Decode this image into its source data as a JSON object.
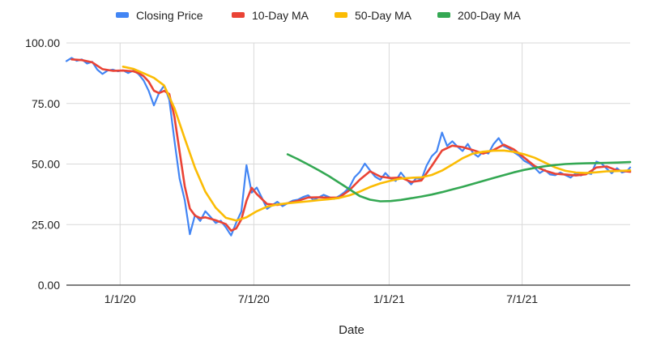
{
  "chart_data": {
    "type": "line",
    "title": "",
    "xlabel": "Date",
    "ylabel": "",
    "x_axis": {
      "type": "date",
      "range": [
        "2019-10-20",
        "2021-11-25"
      ],
      "ticks": [
        {
          "date": "2020-01-01",
          "label": "1/1/20"
        },
        {
          "date": "2020-07-01",
          "label": "7/1/20"
        },
        {
          "date": "2021-01-01",
          "label": "1/1/21"
        },
        {
          "date": "2021-07-01",
          "label": "7/1/21"
        }
      ]
    },
    "y_axis": {
      "range": [
        0,
        100
      ],
      "ticks": [
        {
          "value": 0,
          "label": "0.00"
        },
        {
          "value": 25,
          "label": "25.00"
        },
        {
          "value": 50,
          "label": "50.00"
        },
        {
          "value": 75,
          "label": "75.00"
        },
        {
          "value": 100,
          "label": "100.00"
        }
      ]
    },
    "grid": true,
    "legend_position": "top",
    "series": [
      {
        "name": "Closing Price",
        "color": "#4285f4",
        "points": [
          [
            "2019-10-20",
            92.5
          ],
          [
            "2019-10-27",
            93.8
          ],
          [
            "2019-11-03",
            92.6
          ],
          [
            "2019-11-10",
            93.2
          ],
          [
            "2019-11-17",
            91.5
          ],
          [
            "2019-11-24",
            92.2
          ],
          [
            "2019-12-01",
            89.0
          ],
          [
            "2019-12-08",
            87.2
          ],
          [
            "2019-12-15",
            88.6
          ],
          [
            "2019-12-22",
            89.0
          ],
          [
            "2019-12-29",
            88.3
          ],
          [
            "2020-01-05",
            88.7
          ],
          [
            "2020-01-12",
            87.6
          ],
          [
            "2020-01-19",
            88.6
          ],
          [
            "2020-01-26",
            87.2
          ],
          [
            "2020-02-02",
            84.5
          ],
          [
            "2020-02-09",
            80.2
          ],
          [
            "2020-02-16",
            74.2
          ],
          [
            "2020-02-23",
            79.3
          ],
          [
            "2020-03-01",
            82.4
          ],
          [
            "2020-03-08",
            76.5
          ],
          [
            "2020-03-15",
            59.6
          ],
          [
            "2020-03-22",
            44.0
          ],
          [
            "2020-03-29",
            35.1
          ],
          [
            "2020-04-05",
            21.0
          ],
          [
            "2020-04-12",
            29.0
          ],
          [
            "2020-04-19",
            26.5
          ],
          [
            "2020-04-26",
            30.5
          ],
          [
            "2020-05-03",
            28.2
          ],
          [
            "2020-05-10",
            25.7
          ],
          [
            "2020-05-17",
            26.6
          ],
          [
            "2020-05-24",
            23.8
          ],
          [
            "2020-05-31",
            20.5
          ],
          [
            "2020-06-07",
            25.8
          ],
          [
            "2020-06-14",
            30.4
          ],
          [
            "2020-06-21",
            49.5
          ],
          [
            "2020-06-28",
            38.2
          ],
          [
            "2020-07-05",
            40.3
          ],
          [
            "2020-07-12",
            36.0
          ],
          [
            "2020-07-19",
            31.5
          ],
          [
            "2020-07-26",
            33.0
          ],
          [
            "2020-08-02",
            34.4
          ],
          [
            "2020-08-09",
            32.6
          ],
          [
            "2020-08-16",
            33.8
          ],
          [
            "2020-08-23",
            34.9
          ],
          [
            "2020-08-30",
            35.3
          ],
          [
            "2020-09-06",
            36.4
          ],
          [
            "2020-09-13",
            37.1
          ],
          [
            "2020-09-20",
            35.2
          ],
          [
            "2020-09-27",
            36.2
          ],
          [
            "2020-10-04",
            37.3
          ],
          [
            "2020-10-11",
            36.4
          ],
          [
            "2020-10-18",
            35.6
          ],
          [
            "2020-10-25",
            36.8
          ],
          [
            "2020-11-01",
            38.3
          ],
          [
            "2020-11-08",
            40.4
          ],
          [
            "2020-11-15",
            44.5
          ],
          [
            "2020-11-22",
            46.7
          ],
          [
            "2020-11-29",
            50.2
          ],
          [
            "2020-12-06",
            47.4
          ],
          [
            "2020-12-13",
            44.8
          ],
          [
            "2020-12-20",
            43.5
          ],
          [
            "2020-12-27",
            46.3
          ],
          [
            "2021-01-03",
            44.0
          ],
          [
            "2021-01-10",
            43.0
          ],
          [
            "2021-01-17",
            46.5
          ],
          [
            "2021-01-24",
            43.8
          ],
          [
            "2021-01-31",
            41.6
          ],
          [
            "2021-02-07",
            44.2
          ],
          [
            "2021-02-14",
            43.6
          ],
          [
            "2021-02-21",
            49.3
          ],
          [
            "2021-02-28",
            53.2
          ],
          [
            "2021-03-07",
            55.3
          ],
          [
            "2021-03-14",
            63.0
          ],
          [
            "2021-03-21",
            57.5
          ],
          [
            "2021-03-28",
            59.4
          ],
          [
            "2021-04-04",
            57.2
          ],
          [
            "2021-04-11",
            55.4
          ],
          [
            "2021-04-18",
            58.3
          ],
          [
            "2021-04-25",
            54.6
          ],
          [
            "2021-05-02",
            53.0
          ],
          [
            "2021-05-09",
            55.2
          ],
          [
            "2021-05-16",
            54.3
          ],
          [
            "2021-05-23",
            58.2
          ],
          [
            "2021-05-30",
            60.7
          ],
          [
            "2021-06-06",
            57.4
          ],
          [
            "2021-06-13",
            56.4
          ],
          [
            "2021-06-20",
            54.8
          ],
          [
            "2021-06-27",
            53.4
          ],
          [
            "2021-07-04",
            51.3
          ],
          [
            "2021-07-11",
            50.2
          ],
          [
            "2021-07-18",
            48.5
          ],
          [
            "2021-07-25",
            46.3
          ],
          [
            "2021-08-01",
            47.6
          ],
          [
            "2021-08-08",
            45.7
          ],
          [
            "2021-08-15",
            45.4
          ],
          [
            "2021-08-22",
            46.5
          ],
          [
            "2021-08-29",
            45.4
          ],
          [
            "2021-09-05",
            44.4
          ],
          [
            "2021-09-12",
            46.2
          ],
          [
            "2021-09-19",
            45.3
          ],
          [
            "2021-09-26",
            46.4
          ],
          [
            "2021-10-03",
            45.9
          ],
          [
            "2021-10-10",
            51.0
          ],
          [
            "2021-10-17",
            50.2
          ],
          [
            "2021-10-24",
            48.1
          ],
          [
            "2021-10-31",
            46.2
          ],
          [
            "2021-11-07",
            48.3
          ],
          [
            "2021-11-14",
            46.5
          ],
          [
            "2021-11-21",
            47.2
          ],
          [
            "2021-11-25",
            48.6
          ]
        ]
      },
      {
        "name": "10-Day MA",
        "color": "#ea4335",
        "points": [
          [
            "2019-10-27",
            93.2
          ],
          [
            "2019-11-10",
            92.9
          ],
          [
            "2019-11-24",
            92.0
          ],
          [
            "2019-12-08",
            89.2
          ],
          [
            "2019-12-22",
            88.5
          ],
          [
            "2020-01-05",
            88.6
          ],
          [
            "2020-01-19",
            88.3
          ],
          [
            "2020-01-26",
            87.6
          ],
          [
            "2020-02-02",
            86.3
          ],
          [
            "2020-02-09",
            84.0
          ],
          [
            "2020-02-16",
            80.3
          ],
          [
            "2020-02-23",
            79.3
          ],
          [
            "2020-03-01",
            80.2
          ],
          [
            "2020-03-08",
            78.9
          ],
          [
            "2020-03-15",
            69.4
          ],
          [
            "2020-03-22",
            55.2
          ],
          [
            "2020-03-29",
            40.8
          ],
          [
            "2020-04-05",
            31.6
          ],
          [
            "2020-04-12",
            28.7
          ],
          [
            "2020-04-19",
            27.7
          ],
          [
            "2020-04-26",
            28.0
          ],
          [
            "2020-05-10",
            26.8
          ],
          [
            "2020-05-24",
            25.2
          ],
          [
            "2020-05-31",
            22.5
          ],
          [
            "2020-06-07",
            23.4
          ],
          [
            "2020-06-14",
            27.2
          ],
          [
            "2020-06-21",
            34.8
          ],
          [
            "2020-06-28",
            40.2
          ],
          [
            "2020-07-05",
            37.6
          ],
          [
            "2020-07-19",
            33.5
          ],
          [
            "2020-08-02",
            33.1
          ],
          [
            "2020-08-16",
            33.8
          ],
          [
            "2020-08-30",
            34.8
          ],
          [
            "2020-09-13",
            36.2
          ],
          [
            "2020-09-27",
            36.3
          ],
          [
            "2020-10-11",
            36.1
          ],
          [
            "2020-10-25",
            36.2
          ],
          [
            "2020-11-08",
            39.2
          ],
          [
            "2020-11-22",
            43.5
          ],
          [
            "2020-12-06",
            47.0
          ],
          [
            "2020-12-20",
            44.8
          ],
          [
            "2021-01-03",
            44.2
          ],
          [
            "2021-01-17",
            44.4
          ],
          [
            "2021-01-31",
            42.6
          ],
          [
            "2021-02-14",
            43.2
          ],
          [
            "2021-02-28",
            49.2
          ],
          [
            "2021-03-14",
            55.6
          ],
          [
            "2021-03-28",
            57.6
          ],
          [
            "2021-04-11",
            57.0
          ],
          [
            "2021-04-25",
            55.8
          ],
          [
            "2021-05-09",
            54.3
          ],
          [
            "2021-05-23",
            55.8
          ],
          [
            "2021-06-06",
            58.0
          ],
          [
            "2021-06-20",
            56.0
          ],
          [
            "2021-07-04",
            52.6
          ],
          [
            "2021-07-18",
            49.2
          ],
          [
            "2021-08-01",
            47.3
          ],
          [
            "2021-08-15",
            46.0
          ],
          [
            "2021-08-29",
            45.7
          ],
          [
            "2021-09-12",
            45.3
          ],
          [
            "2021-09-26",
            45.8
          ],
          [
            "2021-10-10",
            48.6
          ],
          [
            "2021-10-24",
            49.0
          ],
          [
            "2021-11-07",
            47.4
          ],
          [
            "2021-11-25",
            46.8
          ]
        ]
      },
      {
        "name": "50-Day MA",
        "color": "#fbbc04",
        "points": [
          [
            "2020-01-05",
            90.2
          ],
          [
            "2020-01-19",
            89.3
          ],
          [
            "2020-02-02",
            87.5
          ],
          [
            "2020-02-16",
            85.6
          ],
          [
            "2020-03-01",
            82.4
          ],
          [
            "2020-03-15",
            73.0
          ],
          [
            "2020-03-29",
            60.5
          ],
          [
            "2020-04-12",
            48.4
          ],
          [
            "2020-04-26",
            38.6
          ],
          [
            "2020-05-10",
            32.0
          ],
          [
            "2020-05-24",
            27.8
          ],
          [
            "2020-06-07",
            26.7
          ],
          [
            "2020-06-21",
            28.0
          ],
          [
            "2020-07-05",
            30.5
          ],
          [
            "2020-07-19",
            32.4
          ],
          [
            "2020-08-02",
            33.3
          ],
          [
            "2020-08-16",
            33.8
          ],
          [
            "2020-08-30",
            34.2
          ],
          [
            "2020-09-13",
            34.6
          ],
          [
            "2020-09-27",
            35.1
          ],
          [
            "2020-10-11",
            35.5
          ],
          [
            "2020-10-25",
            36.0
          ],
          [
            "2020-11-08",
            37.1
          ],
          [
            "2020-11-22",
            38.6
          ],
          [
            "2020-12-06",
            40.5
          ],
          [
            "2020-12-20",
            42.0
          ],
          [
            "2021-01-03",
            43.1
          ],
          [
            "2021-01-17",
            44.0
          ],
          [
            "2021-01-31",
            44.3
          ],
          [
            "2021-02-14",
            44.5
          ],
          [
            "2021-02-28",
            45.5
          ],
          [
            "2021-03-14",
            47.3
          ],
          [
            "2021-03-28",
            49.8
          ],
          [
            "2021-04-11",
            52.4
          ],
          [
            "2021-04-25",
            54.3
          ],
          [
            "2021-05-09",
            55.1
          ],
          [
            "2021-05-23",
            55.5
          ],
          [
            "2021-06-06",
            55.6
          ],
          [
            "2021-06-20",
            55.0
          ],
          [
            "2021-07-04",
            54.0
          ],
          [
            "2021-07-18",
            52.6
          ],
          [
            "2021-08-01",
            50.6
          ],
          [
            "2021-08-15",
            48.6
          ],
          [
            "2021-08-29",
            47.2
          ],
          [
            "2021-09-12",
            46.5
          ],
          [
            "2021-09-26",
            46.3
          ],
          [
            "2021-10-10",
            46.6
          ],
          [
            "2021-10-24",
            47.0
          ],
          [
            "2021-11-07",
            47.1
          ],
          [
            "2021-11-25",
            47.4
          ]
        ]
      },
      {
        "name": "200-Day MA",
        "color": "#34a853",
        "points": [
          [
            "2020-08-16",
            54.0
          ],
          [
            "2020-08-30",
            52.0
          ],
          [
            "2020-09-13",
            49.8
          ],
          [
            "2020-09-27",
            47.5
          ],
          [
            "2020-10-11",
            45.0
          ],
          [
            "2020-10-25",
            42.3
          ],
          [
            "2020-11-08",
            39.6
          ],
          [
            "2020-11-22",
            36.8
          ],
          [
            "2020-12-06",
            35.3
          ],
          [
            "2020-12-20",
            34.6
          ],
          [
            "2021-01-03",
            34.7
          ],
          [
            "2021-01-17",
            35.2
          ],
          [
            "2021-01-31",
            35.9
          ],
          [
            "2021-02-14",
            36.6
          ],
          [
            "2021-02-28",
            37.4
          ],
          [
            "2021-03-14",
            38.4
          ],
          [
            "2021-03-28",
            39.5
          ],
          [
            "2021-04-11",
            40.6
          ],
          [
            "2021-04-25",
            41.8
          ],
          [
            "2021-05-09",
            43.0
          ],
          [
            "2021-05-23",
            44.2
          ],
          [
            "2021-06-06",
            45.4
          ],
          [
            "2021-06-20",
            46.6
          ],
          [
            "2021-07-04",
            47.6
          ],
          [
            "2021-07-18",
            48.4
          ],
          [
            "2021-08-01",
            49.1
          ],
          [
            "2021-08-15",
            49.6
          ],
          [
            "2021-08-29",
            50.0
          ],
          [
            "2021-09-12",
            50.2
          ],
          [
            "2021-09-26",
            50.3
          ],
          [
            "2021-10-10",
            50.4
          ],
          [
            "2021-10-24",
            50.5
          ],
          [
            "2021-11-07",
            50.6
          ],
          [
            "2021-11-25",
            50.8
          ]
        ]
      }
    ]
  }
}
